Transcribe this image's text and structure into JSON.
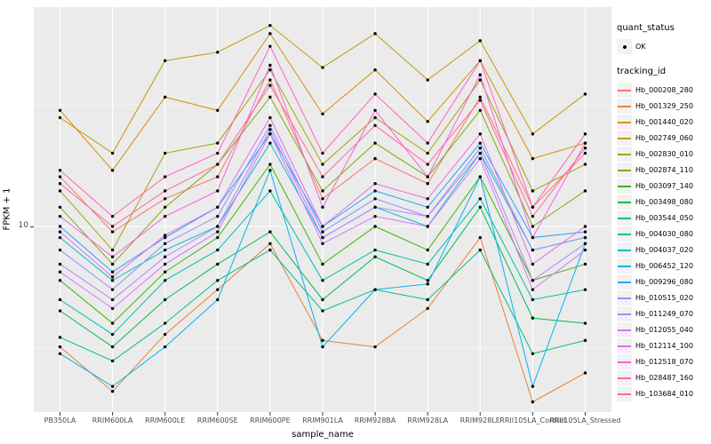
{
  "figure": {
    "y_axis_title": "FPKM + 1",
    "x_axis_title": "sample_name",
    "y_tick_label": "10"
  },
  "legend": {
    "quant_status_title": "quant_status",
    "quant_status_items": [
      {
        "label": "OK",
        "symbol": "black-point"
      }
    ],
    "tracking_id_title": "tracking_id"
  },
  "chart_data": {
    "type": "line",
    "x": [
      "PB350LA",
      "RRIM600LA",
      "RRIM600LE",
      "RRIM600SE",
      "RRIM600PE",
      "RRIM901LA",
      "RRIM928BA",
      "RRIM928LA",
      "RRIM928LE",
      "RRII105LA_Control",
      "RRII105LA_Stressed"
    ],
    "xlabel": "sample_name",
    "ylabel": "FPKM + 1",
    "y_scale": "log10",
    "y_ticks": [
      10
    ],
    "ylim": [
      1.6,
      75
    ],
    "grid": true,
    "legend_position": "right",
    "panel_background": "#EBEBEB",
    "gridline_color": "#FFFFFF",
    "point_color": "#000000",
    "series": [
      {
        "name": "Hb_000208_280",
        "color": "#F8766D",
        "values": [
          16,
          9.5,
          13,
          16,
          40,
          13,
          19,
          15,
          34,
          12,
          20
        ]
      },
      {
        "name": "Hb_001329_250",
        "color": "#EA8331",
        "values": [
          3.2,
          2.1,
          3.6,
          5.5,
          8.5,
          3.4,
          3.2,
          4.6,
          9,
          1.9,
          2.5
        ]
      },
      {
        "name": "Hb_001440_020",
        "color": "#D89000",
        "values": [
          30,
          17,
          34,
          30,
          62,
          29,
          44,
          27,
          48,
          19,
          22
        ]
      },
      {
        "name": "Hb_002749_060",
        "color": "#C09B00",
        "values": [
          28,
          20,
          48,
          52,
          67,
          45,
          62,
          40,
          58,
          24,
          35
        ]
      },
      {
        "name": "Hb_002830_010",
        "color": "#A3A500",
        "values": [
          14,
          8,
          20,
          22,
          44,
          18,
          28,
          20,
          40,
          14,
          18
        ]
      },
      {
        "name": "Hb_002874_110",
        "color": "#7CAE00",
        "values": [
          12,
          7,
          12,
          18,
          34,
          14,
          22,
          16,
          30,
          10,
          14
        ]
      },
      {
        "name": "Hb_003097_140",
        "color": "#39B600",
        "values": [
          6,
          4,
          6.5,
          9,
          18,
          7,
          10,
          8,
          16,
          6,
          7
        ]
      },
      {
        "name": "Hb_003498_080",
        "color": "#00BB4E",
        "values": [
          4.5,
          3.2,
          5,
          7,
          9.5,
          5,
          7.5,
          6,
          12,
          4.2,
          4
        ]
      },
      {
        "name": "Hb_003544_050",
        "color": "#00C087",
        "values": [
          3.5,
          2.8,
          4,
          6,
          8,
          4.5,
          5.5,
          5,
          8,
          3,
          3.4
        ]
      },
      {
        "name": "Hb_004030_080",
        "color": "#00C0A5",
        "values": [
          5,
          3.6,
          6,
          8,
          14,
          6,
          8,
          7,
          13,
          5,
          5.5
        ]
      },
      {
        "name": "Hb_004037_020",
        "color": "#00BFC4",
        "values": [
          9,
          6,
          8,
          10,
          22,
          9,
          12,
          10,
          20,
          8,
          9
        ]
      },
      {
        "name": "Hb_006452_120",
        "color": "#00B5EC",
        "values": [
          3,
          2.2,
          3.2,
          5,
          17,
          3.2,
          5.5,
          5.8,
          16,
          2.2,
          8.5
        ]
      },
      {
        "name": "Hb_009296_080",
        "color": "#29A3FF",
        "values": [
          10,
          6.5,
          9,
          12,
          24,
          10,
          14,
          12,
          22,
          9,
          9.5
        ]
      },
      {
        "name": "Hb_010515_020",
        "color": "#8B93FF",
        "values": [
          8,
          5.5,
          8.5,
          11,
          26,
          9.5,
          13,
          11,
          21,
          8,
          9
        ]
      },
      {
        "name": "Hb_011249_070",
        "color": "#B983FF",
        "values": [
          7,
          5,
          7.5,
          10,
          25,
          9,
          12,
          11,
          20,
          6,
          8.5
        ]
      },
      {
        "name": "Hb_012055_040",
        "color": "#D575FE",
        "values": [
          6.5,
          4.6,
          7,
          9.5,
          24,
          8.5,
          11,
          10,
          19,
          5.5,
          8
        ]
      },
      {
        "name": "Hb_012114_100",
        "color": "#E76BF3",
        "values": [
          9.5,
          6.2,
          9.2,
          12,
          28,
          10,
          15,
          13,
          24,
          7,
          10
        ]
      },
      {
        "name": "Hb_012518_070",
        "color": "#FA62DB",
        "values": [
          11,
          7.5,
          11,
          14,
          46,
          12,
          30,
          16,
          42,
          9,
          22
        ]
      },
      {
        "name": "Hb_028487_160",
        "color": "#FF61C3",
        "values": [
          17,
          11,
          16,
          20,
          55,
          20,
          35,
          22,
          48,
          12,
          24
        ]
      },
      {
        "name": "Hb_103684_010",
        "color": "#FF689E",
        "values": [
          15,
          10,
          14,
          18,
          38,
          16,
          26,
          18,
          33,
          11,
          21
        ]
      }
    ]
  }
}
